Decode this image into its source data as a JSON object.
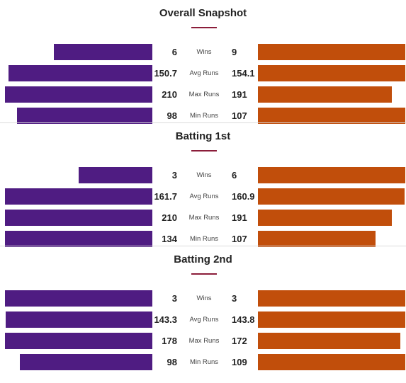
{
  "colors": {
    "team_a": "#4f1c82",
    "team_b": "#c14e0b",
    "accent": "#8b1d3a"
  },
  "chart_data": [
    {
      "type": "bar",
      "title": "Overall Snapshot",
      "categories": [
        "Wins",
        "Avg Runs",
        "Max Runs",
        "Min Runs"
      ],
      "series": [
        {
          "values": [
            6,
            150.7,
            210,
            98
          ]
        },
        {
          "values": [
            9,
            154.1,
            191,
            107
          ]
        }
      ]
    },
    {
      "type": "bar",
      "title": "Batting 1st",
      "categories": [
        "Wins",
        "Avg Runs",
        "Max Runs",
        "Min Runs"
      ],
      "series": [
        {
          "values": [
            3,
            161.7,
            210,
            134
          ]
        },
        {
          "values": [
            6,
            160.9,
            191,
            107
          ]
        }
      ]
    },
    {
      "type": "bar",
      "title": "Batting 2nd",
      "categories": [
        "Wins",
        "Avg Runs",
        "Max Runs",
        "Min Runs"
      ],
      "series": [
        {
          "values": [
            3,
            143.3,
            178,
            98
          ]
        },
        {
          "values": [
            3,
            143.8,
            172,
            109
          ]
        }
      ]
    }
  ]
}
